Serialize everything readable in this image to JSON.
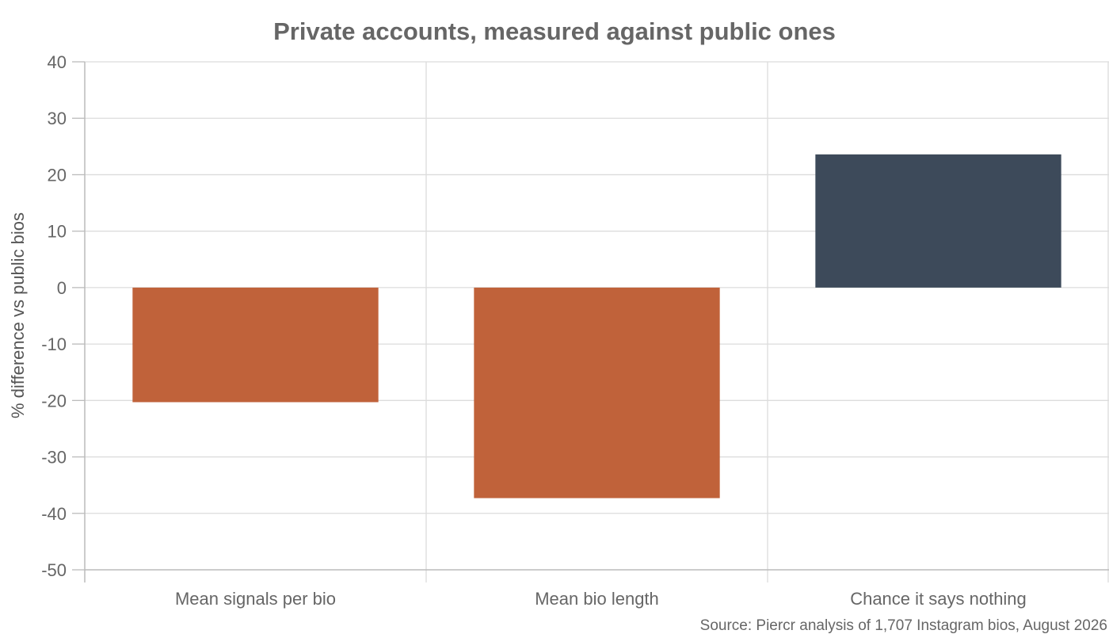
{
  "chart_data": {
    "type": "bar",
    "title": "Private accounts, measured against public ones",
    "ylabel": "% difference vs public bios",
    "xlabel": "",
    "source": "Source: Piercr analysis of 1,707 Instagram bios, August 2026",
    "categories": [
      "Mean signals per bio",
      "Mean bio length",
      "Chance it says nothing"
    ],
    "values": [
      -20.3,
      -37.3,
      23.6
    ],
    "bar_colors": [
      "#c0623a",
      "#c0623a",
      "#3d4a5a"
    ],
    "ylim": [
      -50,
      40
    ],
    "yticks": [
      40,
      30,
      20,
      10,
      0,
      -10,
      -20,
      -30,
      -40,
      -50
    ],
    "ytick_labels": [
      "40",
      "30",
      "20",
      "10",
      "0",
      "-10",
      "-20",
      "-30",
      "-40",
      "-50"
    ],
    "grid": true,
    "legend": "none"
  }
}
